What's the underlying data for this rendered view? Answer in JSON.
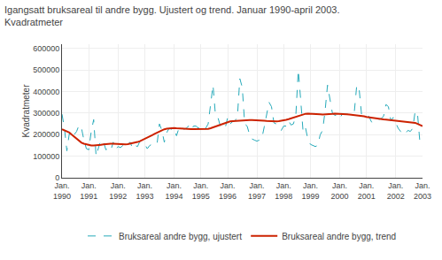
{
  "chart_data": {
    "type": "line",
    "title": "Igangsatt bruksareal til andre bygg. Ujustert og trend. Januar 1990-april 2003.",
    "subtitle": "Kvadratmeter",
    "y_label": "Kvadratmeter",
    "categories": [
      "Jan. 1990",
      null,
      null,
      null,
      null,
      null,
      null,
      null,
      null,
      null,
      null,
      "Jan. 1991",
      null,
      null,
      null,
      null,
      null,
      null,
      null,
      null,
      null,
      null,
      null,
      "Jan. 1992",
      null,
      null,
      null,
      null,
      null,
      null,
      null,
      null,
      null,
      null,
      "Jan. 1993",
      null,
      null,
      null,
      null,
      null,
      null,
      null,
      null,
      null,
      null,
      null,
      "Jan. 1994",
      null,
      null,
      null,
      null,
      null,
      null,
      null,
      null,
      null,
      null,
      "Jan. 1995",
      null,
      null,
      null,
      null,
      null,
      null,
      null,
      null,
      null,
      null,
      "Jan. 1996",
      null,
      null,
      null,
      null,
      null,
      null,
      null,
      null,
      null,
      null,
      null,
      "Jan. 1997",
      null,
      null,
      null,
      null,
      null,
      null,
      null,
      null,
      null,
      null,
      "Jan. 1998",
      null,
      null,
      null,
      null,
      null,
      null,
      null,
      null,
      null,
      null,
      "Jan. 1999",
      null,
      null,
      null,
      null,
      null,
      null,
      null,
      null,
      null,
      null,
      null,
      "Jan. 2000",
      null,
      null,
      null,
      null,
      null,
      null,
      null,
      null,
      null,
      null,
      "Jan. 2001",
      null,
      null,
      null,
      null,
      null,
      null,
      null,
      null,
      null,
      null,
      null,
      "Jan. 2002",
      null,
      null,
      null,
      null,
      null,
      null,
      null,
      null,
      null,
      null,
      "Jan. 2003"
    ],
    "series": [
      {
        "name": "Bruksareal andre bygg, ujustert",
        "color": "#26AABA",
        "line_style": "dashed",
        "values": [
          295000,
          230000,
          125000,
          205000,
          185000,
          200000,
          215000,
          245000,
          230000,
          175000,
          135000,
          130000,
          215000,
          270000,
          100000,
          140000,
          175000,
          170000,
          130000,
          135000,
          125000,
          165000,
          130000,
          145000,
          140000,
          150000,
          135000,
          155000,
          165000,
          135000,
          150000,
          145000,
          170000,
          165000,
          155000,
          135000,
          150000,
          155000,
          155000,
          155000,
          250000,
          220000,
          165000,
          210000,
          230000,
          225000,
          230000,
          195000,
          230000,
          240000,
          225000,
          230000,
          240000,
          220000,
          240000,
          240000,
          230000,
          235000,
          220000,
          230000,
          250000,
          350000,
          430000,
          290000,
          280000,
          240000,
          230000,
          230000,
          280000,
          250000,
          260000,
          265000,
          280000,
          460000,
          420000,
          250000,
          240000,
          200000,
          180000,
          175000,
          170000,
          175000,
          180000,
          235000,
          290000,
          350000,
          330000,
          255000,
          250000,
          230000,
          220000,
          240000,
          240000,
          265000,
          245000,
          250000,
          290000,
          500000,
          360000,
          210000,
          230000,
          175000,
          155000,
          150000,
          145000,
          150000,
          200000,
          220000,
          310000,
          430000,
          360000,
          300000,
          290000,
          290000,
          275000,
          295000,
          295000,
          295000,
          295000,
          300000,
          305000,
          430000,
          410000,
          290000,
          285000,
          280000,
          285000,
          260000,
          255000,
          265000,
          270000,
          275000,
          285000,
          340000,
          330000,
          265000,
          280000,
          255000,
          230000,
          215000,
          200000,
          205000,
          220000,
          215000,
          230000,
          310000,
          290000,
          155000,
          145000
        ]
      },
      {
        "name": "Bruksareal andre bygg, trend",
        "color": "#CC2200",
        "line_style": "solid",
        "values": [
          225000,
          220000,
          215000,
          210000,
          200000,
          190000,
          180000,
          170000,
          163000,
          158000,
          155000,
          152000,
          150000,
          150000,
          150000,
          151000,
          153000,
          155000,
          157000,
          158000,
          158000,
          158000,
          157000,
          156000,
          155000,
          155000,
          155000,
          156000,
          158000,
          160000,
          163000,
          166000,
          170000,
          175000,
          180000,
          186000,
          192000,
          198000,
          204000,
          210000,
          216000,
          221000,
          225000,
          228000,
          230000,
          231000,
          231000,
          230000,
          229000,
          228000,
          227000,
          226000,
          226000,
          226000,
          226000,
          226000,
          226000,
          226000,
          226000,
          226000,
          227000,
          230000,
          234000,
          239000,
          244000,
          249000,
          253000,
          257000,
          260000,
          262000,
          263000,
          264000,
          264000,
          265000,
          266000,
          267000,
          268000,
          268000,
          268000,
          268000,
          268000,
          267000,
          266000,
          265000,
          264000,
          263000,
          263000,
          262000,
          262000,
          263000,
          264000,
          266000,
          269000,
          272000,
          276000,
          280000,
          284000,
          288000,
          292000,
          295000,
          297000,
          298000,
          298000,
          298000,
          297000,
          296000,
          295000,
          294000,
          294000,
          295000,
          296000,
          297000,
          298000,
          298000,
          298000,
          297000,
          296000,
          295000,
          294000,
          293000,
          292000,
          291000,
          289000,
          287000,
          285000,
          282000,
          280000,
          278000,
          276000,
          274000,
          273000,
          272000,
          271000,
          270000,
          269000,
          268000,
          267000,
          266000,
          265000,
          263000,
          261000,
          260000,
          258000,
          257000,
          256000,
          255000,
          250000,
          245000,
          240000
        ]
      }
    ],
    "ylim": [
      0,
      620000
    ],
    "yticks": [
      0,
      100000,
      200000,
      300000,
      400000,
      500000,
      600000
    ],
    "grid": true,
    "legend": "bottom"
  }
}
